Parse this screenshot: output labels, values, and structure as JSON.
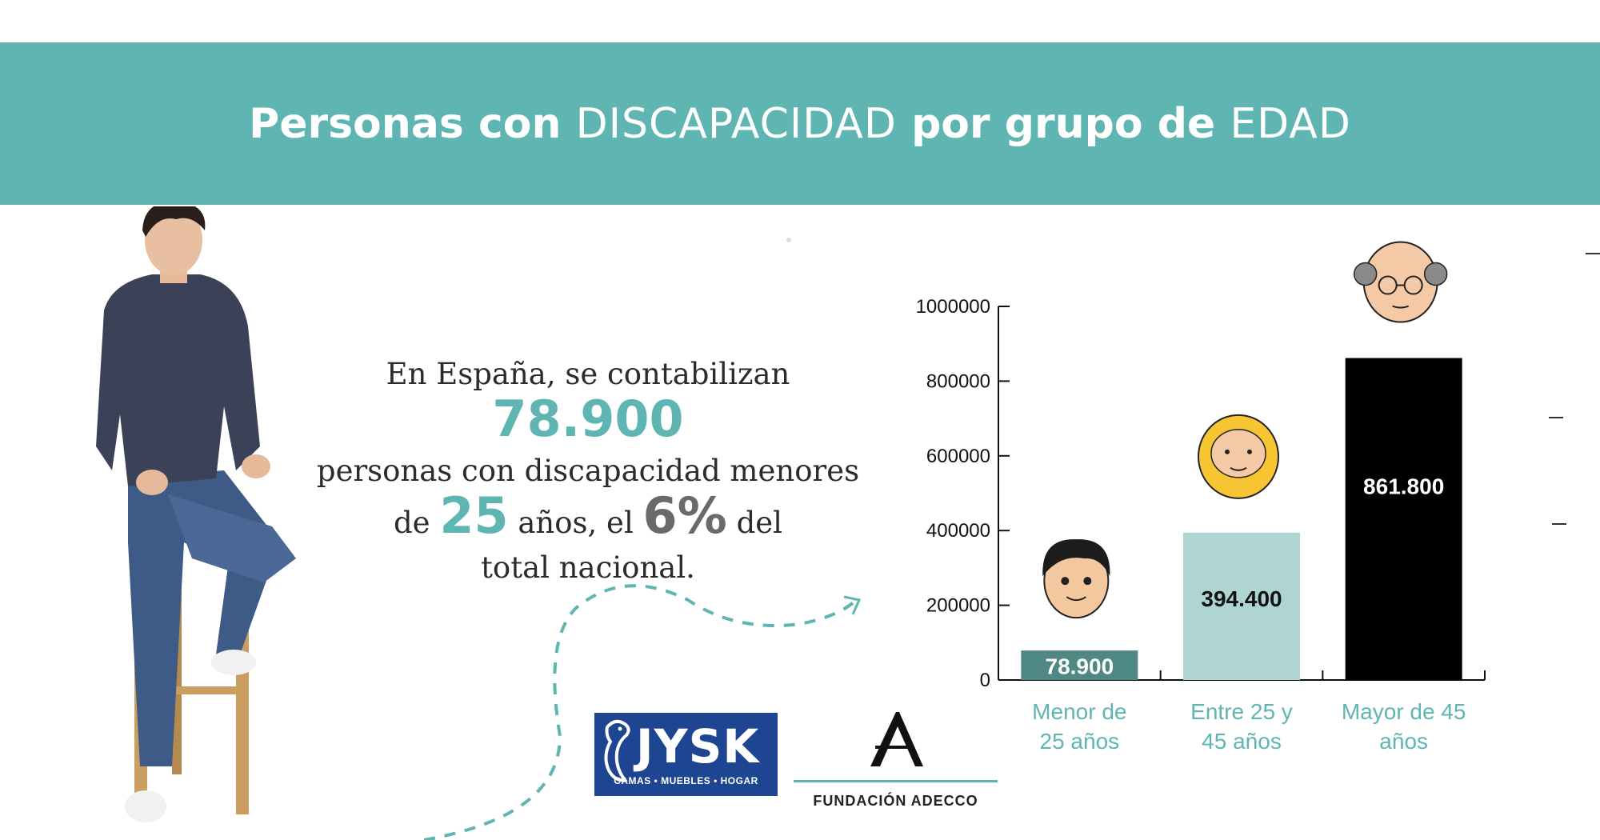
{
  "banner": {
    "part1": "Personas con ",
    "part2": "DISCAPACIDAD",
    "part3": " por grupo de ",
    "part4": "EDAD"
  },
  "sentence": {
    "pre": "En España, se contabilizan ",
    "num1": "78.900",
    "mid1": "personas con discapacidad menores",
    "de": "de ",
    "num2": "25",
    "mid2": " años, el ",
    "num3": "6%",
    "mid3": " del",
    "end": "total nacional."
  },
  "logos": {
    "jysk_name": "JYSK",
    "jysk_tagline": "CAMAS • MUEBLES • HOGAR",
    "adecco_name": "FUNDACIÓN ADECCO"
  },
  "colors": {
    "teal": "#5eb5b1",
    "bar1": "#4e8783",
    "bar2": "#afd5d2",
    "bar3": "#000000"
  },
  "chart_data": {
    "type": "bar",
    "categories": [
      [
        "Menor de",
        "25 años"
      ],
      [
        "Entre 25 y",
        "45 años"
      ],
      [
        "Mayor de 45",
        "años"
      ]
    ],
    "values": [
      78900,
      394400,
      861800
    ],
    "value_labels": [
      "78.900",
      "394.400",
      "861.800"
    ],
    "ylim": [
      0,
      1000000
    ],
    "yticks": [
      0,
      200000,
      400000,
      600000,
      800000,
      1000000
    ],
    "ytick_labels": [
      "0",
      "200000",
      "400000",
      "600000",
      "800000",
      "1000000"
    ],
    "title": "",
    "xlabel": "",
    "ylabel": "",
    "grid": false,
    "icons": [
      "young-boy-face-icon",
      "bearded-man-face-icon",
      "old-man-face-icon"
    ]
  }
}
